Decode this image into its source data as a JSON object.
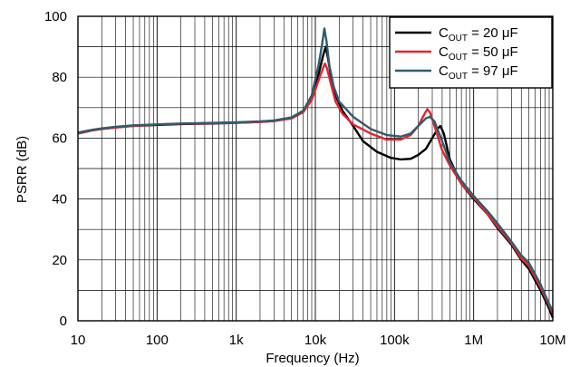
{
  "chart_data": {
    "type": "line",
    "xlabel": "Frequency (Hz)",
    "ylabel": "PSRR (dB)",
    "x_scale": "log",
    "xlim": [
      10,
      10000000
    ],
    "ylim": [
      0,
      100
    ],
    "grid": true,
    "legend_position": "top-right",
    "x_ticks": [
      {
        "value": 10,
        "label": "10"
      },
      {
        "value": 100,
        "label": "100"
      },
      {
        "value": 1000,
        "label": "1k"
      },
      {
        "value": 10000,
        "label": "10k"
      },
      {
        "value": 100000,
        "label": "100k"
      },
      {
        "value": 1000000,
        "label": "1M"
      },
      {
        "value": 10000000,
        "label": "10M"
      }
    ],
    "y_ticks": [
      {
        "value": 0,
        "label": "0"
      },
      {
        "value": 20,
        "label": "20"
      },
      {
        "value": 40,
        "label": "40"
      },
      {
        "value": 60,
        "label": "60"
      },
      {
        "value": 80,
        "label": "80"
      },
      {
        "value": 100,
        "label": "100"
      }
    ],
    "series": [
      {
        "name": "COUT = 20 μF",
        "label_main": "C",
        "label_sub": "OUT",
        "label_rest": " = 20 μF",
        "color": "#000000",
        "points": [
          [
            10,
            61.5
          ],
          [
            15,
            62.5
          ],
          [
            20,
            63
          ],
          [
            30,
            63.5
          ],
          [
            50,
            64
          ],
          [
            100,
            64.3
          ],
          [
            200,
            64.6
          ],
          [
            500,
            64.8
          ],
          [
            1000,
            65
          ],
          [
            2000,
            65.3
          ],
          [
            3000,
            65.6
          ],
          [
            5000,
            66.5
          ],
          [
            7000,
            68.5
          ],
          [
            9000,
            73
          ],
          [
            11000,
            81
          ],
          [
            12500,
            87
          ],
          [
            13500,
            90
          ],
          [
            14500,
            86
          ],
          [
            16000,
            79
          ],
          [
            18000,
            74
          ],
          [
            22000,
            69
          ],
          [
            30000,
            64
          ],
          [
            40000,
            59
          ],
          [
            60000,
            55.5
          ],
          [
            90000,
            53.5
          ],
          [
            120000,
            53
          ],
          [
            160000,
            53.2
          ],
          [
            200000,
            54.5
          ],
          [
            250000,
            56.5
          ],
          [
            300000,
            60
          ],
          [
            350000,
            63
          ],
          [
            380000,
            64
          ],
          [
            420000,
            61.5
          ],
          [
            500000,
            53
          ],
          [
            700000,
            45
          ],
          [
            1000000,
            40
          ],
          [
            1500000,
            35
          ],
          [
            2000000,
            30.5
          ],
          [
            3000000,
            25
          ],
          [
            4000000,
            20
          ],
          [
            5000000,
            17
          ],
          [
            7000000,
            10
          ],
          [
            9000000,
            4
          ],
          [
            10000000,
            1
          ]
        ]
      },
      {
        "name": "COUT = 50 μF",
        "label_main": "C",
        "label_sub": "OUT",
        "label_rest": " = 50 μF",
        "color": "#e8232a",
        "points": [
          [
            10,
            61.5
          ],
          [
            15,
            62.5
          ],
          [
            20,
            63
          ],
          [
            30,
            63.5
          ],
          [
            50,
            64
          ],
          [
            100,
            64.5
          ],
          [
            200,
            64.7
          ],
          [
            500,
            64.9
          ],
          [
            1000,
            65
          ],
          [
            2000,
            65.3
          ],
          [
            3000,
            65.6
          ],
          [
            5000,
            66.5
          ],
          [
            7000,
            68.5
          ],
          [
            9000,
            72.5
          ],
          [
            11000,
            79
          ],
          [
            12500,
            83
          ],
          [
            13200,
            84.5
          ],
          [
            14000,
            83
          ],
          [
            16000,
            77
          ],
          [
            18000,
            72
          ],
          [
            22000,
            68
          ],
          [
            30000,
            64.5
          ],
          [
            50000,
            61.5
          ],
          [
            80000,
            59.5
          ],
          [
            120000,
            59.5
          ],
          [
            160000,
            61
          ],
          [
            200000,
            64
          ],
          [
            240000,
            68
          ],
          [
            260000,
            69.5
          ],
          [
            280000,
            68.5
          ],
          [
            320000,
            64
          ],
          [
            400000,
            56
          ],
          [
            500000,
            51
          ],
          [
            700000,
            45
          ],
          [
            1000000,
            40.5
          ],
          [
            1500000,
            35
          ],
          [
            2000000,
            31
          ],
          [
            3000000,
            25.5
          ],
          [
            4000000,
            20.5
          ],
          [
            5000000,
            18
          ],
          [
            7000000,
            11
          ],
          [
            9000000,
            5
          ],
          [
            10000000,
            2.5
          ]
        ]
      },
      {
        "name": "COUT = 97 μF",
        "label_main": "C",
        "label_sub": "OUT",
        "label_rest": " = 97 μF",
        "color": "#2e5c6e",
        "points": [
          [
            10,
            61.8
          ],
          [
            15,
            62.7
          ],
          [
            20,
            63.2
          ],
          [
            30,
            63.7
          ],
          [
            50,
            64.2
          ],
          [
            100,
            64.5
          ],
          [
            200,
            64.8
          ],
          [
            500,
            65
          ],
          [
            1000,
            65.2
          ],
          [
            2000,
            65.5
          ],
          [
            3000,
            65.8
          ],
          [
            5000,
            66.8
          ],
          [
            7000,
            69
          ],
          [
            9000,
            74
          ],
          [
            11000,
            84
          ],
          [
            12200,
            91
          ],
          [
            13000,
            96
          ],
          [
            13800,
            92
          ],
          [
            15000,
            84
          ],
          [
            17000,
            77
          ],
          [
            20000,
            72
          ],
          [
            30000,
            67
          ],
          [
            50000,
            63
          ],
          [
            80000,
            61
          ],
          [
            120000,
            60.5
          ],
          [
            160000,
            61.5
          ],
          [
            200000,
            64
          ],
          [
            250000,
            66.5
          ],
          [
            280000,
            67
          ],
          [
            320000,
            65.5
          ],
          [
            400000,
            59
          ],
          [
            500000,
            52
          ],
          [
            700000,
            46
          ],
          [
            1000000,
            41
          ],
          [
            1500000,
            36
          ],
          [
            2000000,
            32
          ],
          [
            3000000,
            26
          ],
          [
            4000000,
            21.5
          ],
          [
            5000000,
            19
          ],
          [
            7000000,
            12
          ],
          [
            9000000,
            5.5
          ],
          [
            10000000,
            3
          ]
        ]
      }
    ]
  }
}
